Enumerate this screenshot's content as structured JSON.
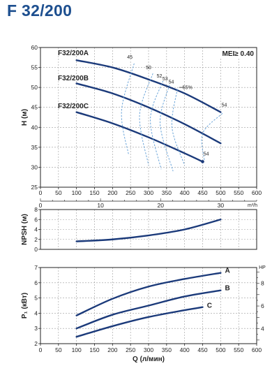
{
  "title": "F 32/200",
  "colors": {
    "curve": "#1b3a7a",
    "eff": "#5b9bd5",
    "grid": "#9a9a9a",
    "frame": "#222222"
  },
  "chart_data": [
    {
      "type": "line",
      "id": "head",
      "ylabel": "H (м)",
      "ylim": [
        25,
        60
      ],
      "yticks": [
        25,
        30,
        35,
        40,
        45,
        50,
        55,
        60
      ],
      "xlim": [
        0,
        600
      ],
      "xticks": [
        0,
        50,
        100,
        150,
        200,
        250,
        300,
        350,
        400,
        450,
        500,
        550,
        600
      ],
      "x2lim": [
        0,
        36
      ],
      "x2ticks": [
        0,
        10,
        20,
        30
      ],
      "x2unit": "m³/h",
      "mei": "MEI≥ 0.40",
      "series": [
        {
          "name": "F32/200A",
          "x": [
            100,
            200,
            300,
            400,
            500
          ],
          "y": [
            56.8,
            55.0,
            52.0,
            48.5,
            43.8
          ]
        },
        {
          "name": "F32/200B",
          "x": [
            100,
            200,
            300,
            400,
            500
          ],
          "y": [
            51.0,
            48.5,
            45.0,
            40.8,
            36.0
          ]
        },
        {
          "name": "F32/200C",
          "x": [
            100,
            200,
            300,
            400,
            450
          ],
          "y": [
            43.8,
            41.0,
            37.5,
            33.5,
            31.4
          ]
        }
      ],
      "efficiency_labels": [
        "45",
        "50",
        "52",
        "53",
        "54",
        "55%",
        "54",
        "54"
      ]
    },
    {
      "type": "line",
      "id": "npsh",
      "ylabel": "NPSH (м)",
      "ylim": [
        0,
        8
      ],
      "yticks": [
        0,
        2,
        4,
        6,
        8
      ],
      "xlim": [
        0,
        600
      ],
      "xticks": [
        0,
        50,
        100,
        150,
        200,
        250,
        300,
        350,
        400,
        450,
        500,
        550,
        600
      ],
      "series": [
        {
          "name": "",
          "x": [
            100,
            200,
            300,
            400,
            500
          ],
          "y": [
            1.6,
            2.0,
            2.8,
            4.0,
            6.0
          ]
        }
      ]
    },
    {
      "type": "line",
      "id": "power",
      "ylabel": "P₁ (кВт)",
      "ylim": [
        2,
        7
      ],
      "yticks": [
        2,
        3,
        4,
        5,
        6,
        7
      ],
      "y2ticks": [
        4,
        6,
        8
      ],
      "y2unit": "HP",
      "xlabel": "Q (л/мин)",
      "xlim": [
        0,
        600
      ],
      "xticks": [
        0,
        50,
        100,
        150,
        200,
        250,
        300,
        350,
        400,
        450,
        500,
        550,
        600
      ],
      "series": [
        {
          "name": "A",
          "x": [
            100,
            200,
            300,
            400,
            500
          ],
          "y": [
            3.85,
            4.95,
            5.75,
            6.25,
            6.65
          ]
        },
        {
          "name": "B",
          "x": [
            100,
            200,
            300,
            400,
            500
          ],
          "y": [
            3.0,
            3.9,
            4.5,
            5.1,
            5.5
          ]
        },
        {
          "name": "C",
          "x": [
            100,
            200,
            300,
            400,
            450
          ],
          "y": [
            2.45,
            3.15,
            3.75,
            4.2,
            4.4
          ]
        }
      ]
    }
  ]
}
